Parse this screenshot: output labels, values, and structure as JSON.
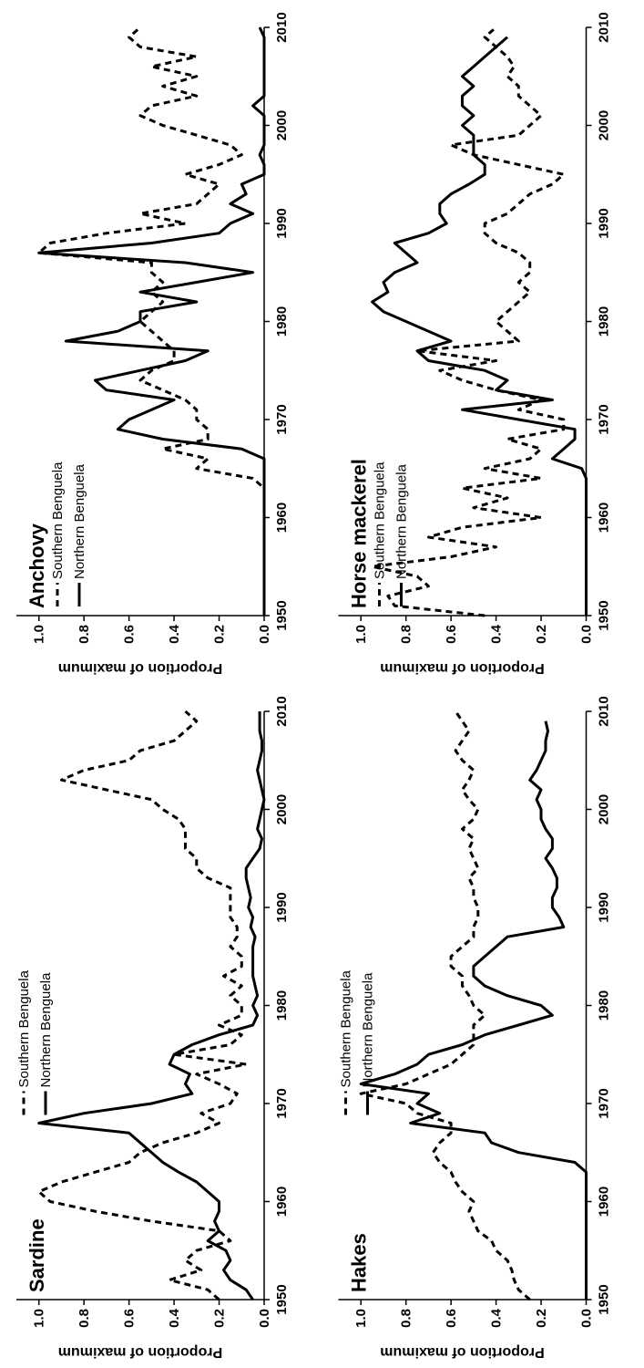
{
  "chart_data": [
    {
      "type": "line",
      "title": "Sardine",
      "ylabel": "Proportion of maximum",
      "legend": "upper center",
      "x": [
        1950,
        1951,
        1952,
        1953,
        1954,
        1955,
        1956,
        1957,
        1958,
        1959,
        1960,
        1961,
        1962,
        1963,
        1964,
        1965,
        1966,
        1967,
        1968,
        1969,
        1970,
        1971,
        1972,
        1973,
        1974,
        1975,
        1976,
        1977,
        1978,
        1979,
        1980,
        1981,
        1982,
        1983,
        1984,
        1985,
        1986,
        1987,
        1988,
        1989,
        1990,
        1991,
        1992,
        1993,
        1994,
        1995,
        1996,
        1997,
        1998,
        1999,
        2000,
        2001,
        2002,
        2003,
        2004,
        2005,
        2006,
        2007,
        2008,
        2009,
        2010
      ],
      "xlim": [
        1950,
        2010
      ],
      "xticks": [
        1950,
        1960,
        1970,
        1980,
        1990,
        2000,
        2010
      ],
      "ylim": [
        0,
        1.1
      ],
      "yticks": [
        {
          "value": 0,
          "label": "0.0"
        },
        0.2,
        0.4,
        0.6,
        0.8,
        {
          "value": 1,
          "label": "1.0"
        }
      ],
      "series": [
        {
          "name": "Southern Benguela",
          "color": "#000000",
          "linestyle": "dashed",
          "values": [
            0.2,
            0.25,
            0.42,
            0.28,
            0.35,
            0.3,
            0.15,
            0.2,
            0.5,
            0.75,
            0.95,
            1.0,
            0.9,
            0.75,
            0.6,
            0.55,
            0.45,
            0.3,
            0.2,
            0.28,
            0.15,
            0.12,
            0.2,
            0.3,
            0.08,
            0.4,
            0.15,
            0.1,
            0.2,
            0.1,
            0.1,
            0.15,
            0.1,
            0.18,
            0.1,
            0.1,
            0.15,
            0.12,
            0.12,
            0.15,
            0.15,
            0.15,
            0.15,
            0.25,
            0.3,
            0.3,
            0.35,
            0.35,
            0.35,
            0.38,
            0.45,
            0.5,
            0.7,
            0.9,
            0.8,
            0.6,
            0.55,
            0.4,
            0.35,
            0.3,
            0.35
          ]
        },
        {
          "name": "Northern Benguela",
          "color": "#000000",
          "linestyle": "solid",
          "values": [
            0.05,
            0.08,
            0.15,
            0.18,
            0.15,
            0.17,
            0.25,
            0.2,
            0.22,
            0.2,
            0.2,
            0.25,
            0.3,
            0.38,
            0.45,
            0.5,
            0.55,
            0.6,
            1.0,
            0.8,
            0.5,
            0.32,
            0.35,
            0.33,
            0.42,
            0.4,
            0.32,
            0.2,
            0.05,
            0.03,
            0.05,
            0.03,
            0.04,
            0.05,
            0.05,
            0.05,
            0.05,
            0.04,
            0.06,
            0.05,
            0.07,
            0.06,
            0.07,
            0.08,
            0.08,
            0.05,
            0.02,
            0.01,
            0.03,
            0.02,
            0.01,
            0.0,
            0.01,
            0.02,
            0.03,
            0.02,
            0.01,
            0.01,
            0.02,
            0.02,
            0.02
          ]
        }
      ]
    },
    {
      "type": "line",
      "title": "Anchovy",
      "ylabel": "Proportion of maximum",
      "legend": "upper left",
      "x": [
        1950,
        1951,
        1952,
        1953,
        1954,
        1955,
        1956,
        1957,
        1958,
        1959,
        1960,
        1961,
        1962,
        1963,
        1964,
        1965,
        1966,
        1967,
        1968,
        1969,
        1970,
        1971,
        1972,
        1973,
        1974,
        1975,
        1976,
        1977,
        1978,
        1979,
        1980,
        1981,
        1982,
        1983,
        1984,
        1985,
        1986,
        1987,
        1988,
        1989,
        1990,
        1991,
        1992,
        1993,
        1994,
        1995,
        1996,
        1997,
        1998,
        1999,
        2000,
        2001,
        2002,
        2003,
        2004,
        2005,
        2006,
        2007,
        2008,
        2009,
        2010
      ],
      "xlim": [
        1950,
        2010
      ],
      "xticks": [
        1950,
        1960,
        1970,
        1980,
        1990,
        2000,
        2010
      ],
      "ylim": [
        0,
        1.1
      ],
      "yticks": [
        {
          "value": 0,
          "label": "0.0"
        },
        0.2,
        0.4,
        0.6,
        0.8,
        {
          "value": 1,
          "label": "1.0"
        }
      ],
      "series": [
        {
          "name": "Southern Benguela",
          "color": "#000000",
          "linestyle": "dashed",
          "values": [
            0,
            0,
            0,
            0,
            0,
            0,
            0,
            0,
            0,
            0,
            0,
            0,
            0,
            0,
            0.05,
            0.3,
            0.25,
            0.45,
            0.25,
            0.25,
            0.3,
            0.3,
            0.35,
            0.45,
            0.55,
            0.5,
            0.4,
            0.4,
            0.45,
            0.5,
            0.55,
            0.5,
            0.45,
            0.5,
            0.45,
            0.5,
            0.5,
            1.0,
            0.95,
            0.7,
            0.35,
            0.55,
            0.3,
            0.25,
            0.2,
            0.35,
            0.2,
            0.1,
            0.15,
            0.3,
            0.45,
            0.55,
            0.5,
            0.3,
            0.45,
            0.3,
            0.5,
            0.3,
            0.55,
            0.6,
            0.55
          ]
        },
        {
          "name": "Northern Benguela",
          "color": "#000000",
          "linestyle": "solid",
          "values": [
            0,
            0,
            0,
            0,
            0,
            0,
            0,
            0,
            0,
            0,
            0,
            0,
            0,
            0,
            0,
            0,
            0,
            0.1,
            0.45,
            0.65,
            0.6,
            0.5,
            0.4,
            0.7,
            0.75,
            0.55,
            0.35,
            0.25,
            0.88,
            0.65,
            0.55,
            0.55,
            0.3,
            0.55,
            0.3,
            0.05,
            0.35,
            1.0,
            0.5,
            0.2,
            0.15,
            0.05,
            0.15,
            0.08,
            0.1,
            0,
            0,
            0.02,
            0,
            0,
            0,
            0,
            0.05,
            0,
            0,
            0,
            0,
            0,
            0,
            0,
            0.02
          ]
        }
      ]
    },
    {
      "type": "line",
      "title": "Hakes",
      "ylabel": "Proportion of maximum",
      "legend": "upper center",
      "x": [
        1950,
        1951,
        1952,
        1953,
        1954,
        1955,
        1956,
        1957,
        1958,
        1959,
        1960,
        1961,
        1962,
        1963,
        1964,
        1965,
        1966,
        1967,
        1968,
        1969,
        1970,
        1971,
        1972,
        1973,
        1974,
        1975,
        1976,
        1977,
        1978,
        1979,
        1980,
        1981,
        1982,
        1983,
        1984,
        1985,
        1986,
        1987,
        1988,
        1989,
        1990,
        1991,
        1992,
        1993,
        1994,
        1995,
        1996,
        1997,
        1998,
        1999,
        2000,
        2001,
        2002,
        2003,
        2004,
        2005,
        2006,
        2007,
        2008,
        2009,
        2010
      ],
      "xlim": [
        1950,
        2010
      ],
      "xticks": [
        1950,
        1960,
        1970,
        1980,
        1990,
        2000,
        2010
      ],
      "ylim": [
        0,
        1.1
      ],
      "yticks": [
        {
          "value": 0,
          "label": "0.0"
        },
        0.2,
        0.4,
        0.6,
        0.8,
        {
          "value": 1,
          "label": "1.0"
        }
      ],
      "series": [
        {
          "name": "Southern Benguela",
          "color": "#000000",
          "linestyle": "dashed",
          "values": [
            0.25,
            0.3,
            0.32,
            0.33,
            0.35,
            0.4,
            0.42,
            0.48,
            0.5,
            0.52,
            0.5,
            0.55,
            0.58,
            0.6,
            0.65,
            0.68,
            0.65,
            0.6,
            0.6,
            0.75,
            0.8,
            1.0,
            0.8,
            0.7,
            0.6,
            0.55,
            0.5,
            0.5,
            0.5,
            0.45,
            0.5,
            0.52,
            0.55,
            0.55,
            0.6,
            0.6,
            0.55,
            0.5,
            0.5,
            0.48,
            0.48,
            0.5,
            0.5,
            0.52,
            0.48,
            0.5,
            0.52,
            0.5,
            0.55,
            0.5,
            0.48,
            0.52,
            0.55,
            0.52,
            0.5,
            0.55,
            0.58,
            0.55,
            0.52,
            0.55,
            0.58
          ]
        },
        {
          "name": "Northern Benguela",
          "color": "#000000",
          "linestyle": "solid",
          "values": [
            0,
            0,
            0,
            0,
            0,
            0,
            0,
            0,
            0,
            0,
            0,
            0,
            0,
            0,
            0.05,
            0.3,
            0.42,
            0.45,
            0.78,
            0.65,
            0.75,
            0.7,
            1.0,
            0.85,
            0.75,
            0.7,
            0.55,
            0.45,
            0.3,
            0.15,
            0.2,
            0.35,
            0.45,
            0.5,
            0.5,
            0.45,
            0.4,
            0.35,
            0.1,
            0.12,
            0.15,
            0.15,
            0.13,
            0.13,
            0.15,
            0.18,
            0.15,
            0.15,
            0.18,
            0.2,
            0.2,
            0.22,
            0.2,
            0.25,
            0.22,
            0.2,
            0.18,
            0.18,
            0.17,
            0.18,
            null
          ]
        }
      ]
    },
    {
      "type": "line",
      "title": "Horse mackerel",
      "ylabel": "Proportion of maximum",
      "legend": "upper left",
      "x": [
        1950,
        1951,
        1952,
        1953,
        1954,
        1955,
        1956,
        1957,
        1958,
        1959,
        1960,
        1961,
        1962,
        1963,
        1964,
        1965,
        1966,
        1967,
        1968,
        1969,
        1970,
        1971,
        1972,
        1973,
        1974,
        1975,
        1976,
        1977,
        1978,
        1979,
        1980,
        1981,
        1982,
        1983,
        1984,
        1985,
        1986,
        1987,
        1988,
        1989,
        1990,
        1991,
        1992,
        1993,
        1994,
        1995,
        1996,
        1997,
        1998,
        1999,
        2000,
        2001,
        2002,
        2003,
        2004,
        2005,
        2006,
        2007,
        2008,
        2009,
        2010
      ],
      "xlim": [
        1950,
        2010
      ],
      "xticks": [
        1950,
        1960,
        1970,
        1980,
        1990,
        2000,
        2010
      ],
      "ylim": [
        0,
        1.1
      ],
      "yticks": [
        {
          "value": 0,
          "label": "0.0"
        },
        0.2,
        0.4,
        0.6,
        0.8,
        {
          "value": 1,
          "label": "1.0"
        }
      ],
      "series": [
        {
          "name": "Southern Benguela",
          "color": "#000000",
          "linestyle": "dashed",
          "values": [
            0.45,
            0.85,
            0.88,
            0.7,
            0.75,
            0.95,
            0.6,
            0.4,
            0.7,
            0.55,
            0.2,
            0.5,
            0.35,
            0.55,
            0.2,
            0.45,
            0.25,
            0.2,
            0.35,
            0.1,
            0.1,
            0.3,
            0.2,
            0.4,
            0.55,
            0.65,
            0.4,
            0.75,
            0.3,
            0.35,
            0.4,
            0.35,
            0.3,
            0.25,
            0.3,
            0.25,
            0.25,
            0.3,
            0.4,
            0.45,
            0.45,
            0.35,
            0.3,
            0.25,
            0.15,
            0.1,
            0.3,
            0.5,
            0.6,
            0.3,
            0.25,
            0.2,
            0.25,
            0.3,
            0.3,
            0.35,
            0.32,
            0.35,
            0.4,
            0.45,
            0.4
          ]
        },
        {
          "name": "Northern Benguela",
          "color": "#000000",
          "linestyle": "solid",
          "values": [
            0,
            0,
            0,
            0,
            0,
            0,
            0,
            0,
            0,
            0,
            0,
            0,
            0,
            0,
            0,
            0.02,
            0.15,
            0.1,
            0.05,
            0.05,
            0.3,
            0.55,
            0.15,
            0.4,
            0.35,
            0.45,
            0.7,
            0.75,
            0.6,
            0.7,
            0.8,
            0.9,
            0.95,
            0.88,
            0.9,
            0.85,
            0.75,
            0.8,
            0.85,
            0.7,
            0.62,
            0.65,
            0.65,
            0.6,
            0.52,
            0.45,
            0.45,
            0.5,
            0.5,
            0.5,
            0.55,
            0.5,
            0.55,
            0.55,
            0.5,
            0.55,
            0.5,
            0.45,
            0.4,
            0.35,
            null
          ]
        }
      ]
    }
  ]
}
